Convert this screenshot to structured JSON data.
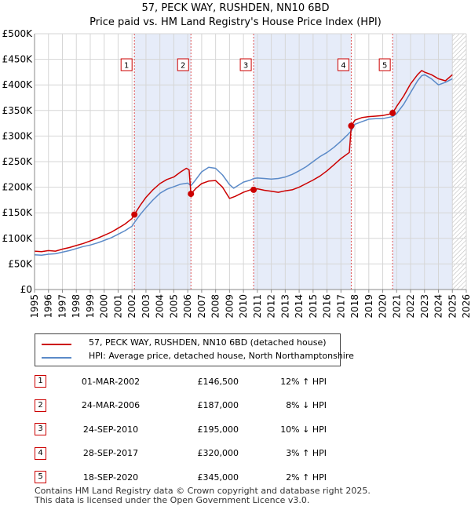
{
  "header": {
    "title_line1": "57, PECK WAY, RUSHDEN, NN10 6BD",
    "title_line2": "Price paid vs. HM Land Registry's House Price Index (HPI)"
  },
  "legend": {
    "property_label": "57, PECK WAY, RUSHDEN, NN10 6BD (detached house)",
    "hpi_label": "HPI: Average price, detached house, North Northamptonshire"
  },
  "colors": {
    "property": "#cc0000",
    "hpi": "#5b8ac8",
    "shade": "#e6ecf9",
    "grid": "#d6d6d6",
    "marker_line": "#e05555"
  },
  "sales": [
    {
      "num": "1",
      "date": "01-MAR-2002",
      "price": "£146,500",
      "hpi": "12% ↑ HPI"
    },
    {
      "num": "2",
      "date": "24-MAR-2006",
      "price": "£187,000",
      "hpi": "8% ↓ HPI"
    },
    {
      "num": "3",
      "date": "24-SEP-2010",
      "price": "£195,000",
      "hpi": "10% ↓ HPI"
    },
    {
      "num": "4",
      "date": "28-SEP-2017",
      "price": "£320,000",
      "hpi": "3% ↑ HPI"
    },
    {
      "num": "5",
      "date": "18-SEP-2020",
      "price": "£345,000",
      "hpi": "2% ↑ HPI"
    }
  ],
  "footer": {
    "line1": "Contains HM Land Registry data © Crown copyright and database right 2025.",
    "line2": "This data is licensed under the Open Government Licence v3.0."
  },
  "chart_data": {
    "type": "line",
    "title": "57, PECK WAY, RUSHDEN, NN10 6BD",
    "subtitle": "Price paid vs. HM Land Registry's House Price Index (HPI)",
    "xlabel": "",
    "ylabel": "",
    "xlim": [
      1995,
      2026
    ],
    "ylim": [
      0,
      500000
    ],
    "x_ticks": [
      "1995",
      "1996",
      "1997",
      "1998",
      "1999",
      "2000",
      "2001",
      "2002",
      "2003",
      "2004",
      "2005",
      "2006",
      "2007",
      "2008",
      "2009",
      "2010",
      "2011",
      "2012",
      "2013",
      "2014",
      "2015",
      "2016",
      "2017",
      "2018",
      "2019",
      "2020",
      "2021",
      "2022",
      "2023",
      "2024",
      "2025",
      "2026"
    ],
    "y_ticks": [
      {
        "value": 0,
        "label": "£0"
      },
      {
        "value": 50000,
        "label": "£50K"
      },
      {
        "value": 100000,
        "label": "£100K"
      },
      {
        "value": 150000,
        "label": "£150K"
      },
      {
        "value": 200000,
        "label": "£200K"
      },
      {
        "value": 250000,
        "label": "£250K"
      },
      {
        "value": 300000,
        "label": "£300K"
      },
      {
        "value": 350000,
        "label": "£350K"
      },
      {
        "value": 400000,
        "label": "£400K"
      },
      {
        "value": 450000,
        "label": "£450K"
      },
      {
        "value": 500000,
        "label": "£500K"
      }
    ],
    "grid": true,
    "legend_position": "below",
    "shaded_ranges": [
      [
        2002.17,
        2006.23
      ],
      [
        2010.73,
        2017.74
      ],
      [
        2020.71,
        2025.0
      ]
    ],
    "hatched_from": 2025.0,
    "sale_markers": [
      {
        "label": "1",
        "x": 2002.17,
        "y": 146500
      },
      {
        "label": "2",
        "x": 2006.23,
        "y": 187000
      },
      {
        "label": "3",
        "x": 2010.73,
        "y": 195000
      },
      {
        "label": "4",
        "x": 2017.74,
        "y": 320000
      },
      {
        "label": "5",
        "x": 2020.71,
        "y": 345000
      }
    ],
    "series": [
      {
        "name": "57, PECK WAY, RUSHDEN, NN10 6BD (detached house)",
        "color": "#cc0000",
        "x": [
          1995.0,
          1995.5,
          1996.0,
          1996.5,
          1997.0,
          1997.5,
          1998.0,
          1998.5,
          1999.0,
          1999.5,
          2000.0,
          2000.5,
          2001.0,
          2001.5,
          2002.0,
          2002.17,
          2002.6,
          2003.0,
          2003.5,
          2004.0,
          2004.5,
          2005.0,
          2005.5,
          2005.9,
          2006.1,
          2006.23,
          2006.6,
          2007.0,
          2007.5,
          2008.0,
          2008.5,
          2009.0,
          2009.4,
          2010.0,
          2010.5,
          2010.73,
          2011.0,
          2011.5,
          2012.0,
          2012.5,
          2013.0,
          2013.5,
          2014.0,
          2014.5,
          2015.0,
          2015.5,
          2016.0,
          2016.5,
          2017.0,
          2017.6,
          2017.74,
          2018.0,
          2018.5,
          2019.0,
          2019.5,
          2020.0,
          2020.5,
          2020.71,
          2021.0,
          2021.5,
          2022.0,
          2022.5,
          2022.8,
          2023.0,
          2023.5,
          2024.0,
          2024.5,
          2025.0
        ],
        "y": [
          75000,
          74000,
          76000,
          75000,
          79000,
          82000,
          86000,
          90000,
          95000,
          100000,
          106000,
          112000,
          120000,
          128000,
          139000,
          146500,
          165000,
          180000,
          195000,
          207000,
          215000,
          220000,
          230000,
          237000,
          234000,
          187000,
          198000,
          207000,
          212000,
          213000,
          200000,
          178000,
          182000,
          190000,
          195000,
          195000,
          197000,
          194000,
          192000,
          190000,
          193000,
          195000,
          200000,
          207000,
          214000,
          222000,
          232000,
          244000,
          256000,
          268000,
          320000,
          331000,
          336000,
          338000,
          339000,
          340000,
          343000,
          345000,
          358000,
          378000,
          402000,
          420000,
          428000,
          425000,
          420000,
          412000,
          408000,
          420000
        ]
      },
      {
        "name": "HPI: Average price, detached house, North Northamptonshire",
        "color": "#5b8ac8",
        "x": [
          1995.0,
          1995.5,
          1996.0,
          1996.5,
          1997.0,
          1997.5,
          1998.0,
          1998.5,
          1999.0,
          1999.5,
          2000.0,
          2000.5,
          2001.0,
          2001.5,
          2002.0,
          2002.17,
          2002.6,
          2003.0,
          2003.5,
          2004.0,
          2004.5,
          2005.0,
          2005.5,
          2006.0,
          2006.23,
          2006.5,
          2007.0,
          2007.5,
          2008.0,
          2008.5,
          2009.0,
          2009.3,
          2010.0,
          2010.5,
          2010.73,
          2011.0,
          2011.5,
          2012.0,
          2012.5,
          2013.0,
          2013.5,
          2014.0,
          2014.5,
          2015.0,
          2015.5,
          2016.0,
          2016.5,
          2017.0,
          2017.5,
          2017.74,
          2018.0,
          2018.5,
          2019.0,
          2019.5,
          2020.0,
          2020.5,
          2020.71,
          2021.0,
          2021.5,
          2022.0,
          2022.5,
          2022.8,
          2023.0,
          2023.5,
          2024.0,
          2024.5,
          2025.0
        ],
        "y": [
          68000,
          67000,
          69000,
          70000,
          73000,
          76000,
          80000,
          84000,
          87000,
          91000,
          96000,
          101000,
          108000,
          115000,
          124000,
          131000,
          147000,
          160000,
          175000,
          188000,
          196000,
          201000,
          206000,
          208000,
          203000,
          212000,
          230000,
          239000,
          237000,
          224000,
          205000,
          198000,
          210000,
          214000,
          217000,
          218000,
          217000,
          216000,
          217000,
          220000,
          225000,
          232000,
          240000,
          250000,
          260000,
          268000,
          278000,
          290000,
          303000,
          310000,
          323000,
          328000,
          333000,
          334000,
          334000,
          337000,
          338000,
          344000,
          362000,
          385000,
          408000,
          418000,
          420000,
          412000,
          400000,
          405000,
          412000
        ]
      }
    ]
  }
}
